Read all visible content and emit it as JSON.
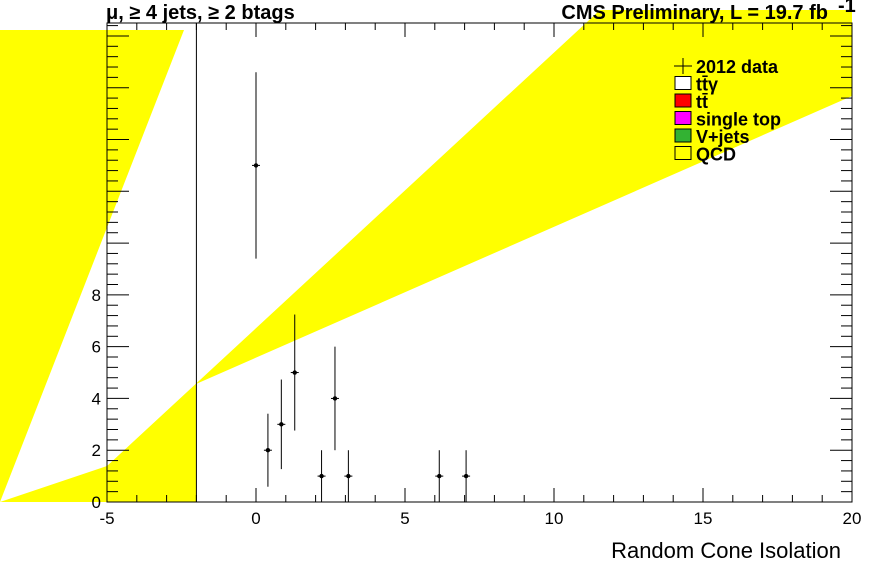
{
  "chart_data": {
    "type": "scatter",
    "title_left": "μ, ≥ 4 jets, ≥ 2 btags",
    "title_right": "CMS Preliminary, L = 19.7 fb",
    "title_right_sup": "-1",
    "xlabel": "Random Cone Isolation",
    "ylabel": "",
    "xlim": [
      -5,
      20
    ],
    "ylim": [
      0,
      18.5
    ],
    "xticks": [
      -5,
      0,
      5,
      10,
      15,
      20
    ],
    "yticks": [
      0,
      2,
      4,
      6,
      8
    ],
    "series": [
      {
        "name": "2012 data",
        "points": [
          {
            "x": 0.0,
            "y": 13,
            "err": 3.6
          },
          {
            "x": 0.4,
            "y": 2,
            "err": 1.41
          },
          {
            "x": 0.85,
            "y": 3,
            "err": 1.73
          },
          {
            "x": 1.3,
            "y": 5,
            "err": 2.24
          },
          {
            "x": 2.2,
            "y": 1,
            "err": 1.0
          },
          {
            "x": 2.65,
            "y": 4,
            "err": 2.0
          },
          {
            "x": 3.1,
            "y": 1,
            "err": 1.0
          },
          {
            "x": 6.15,
            "y": 1,
            "err": 1.0
          },
          {
            "x": 7.05,
            "y": 1,
            "err": 1.0
          }
        ]
      }
    ],
    "vertical_line_x": -2,
    "legend": {
      "placement": "top-right",
      "entries": [
        {
          "label": "2012 data",
          "kind": "marker",
          "color": "#000000"
        },
        {
          "label": "tt̄γ",
          "kind": "box",
          "color": "#ffffff"
        },
        {
          "label": "tt̄",
          "kind": "box",
          "color": "#ff0000"
        },
        {
          "label": "single top",
          "kind": "box",
          "color": "#ff00ff"
        },
        {
          "label": "V+jets",
          "kind": "box",
          "color": "#33b233"
        },
        {
          "label": "QCD",
          "kind": "box",
          "color": "#ffff00"
        }
      ]
    },
    "colors": {
      "qcd": "#ffff00",
      "data": "#000000",
      "frame": "#000000"
    }
  }
}
